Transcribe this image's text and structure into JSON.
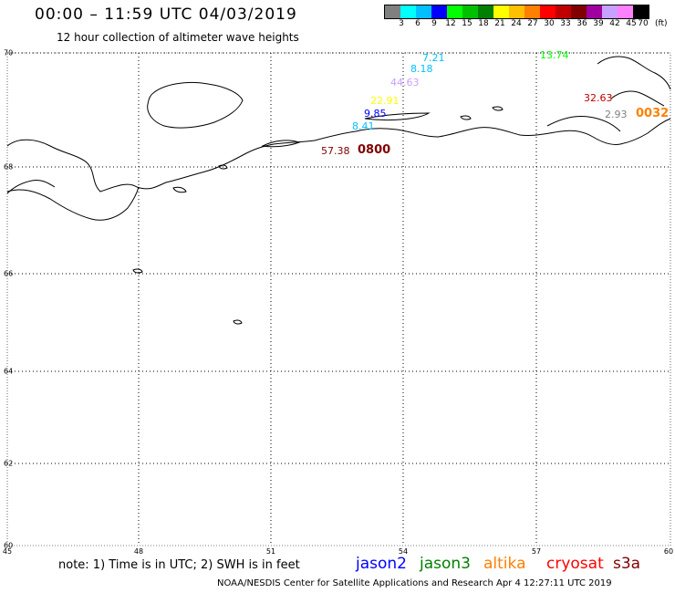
{
  "header": {
    "title": "00:00 – 11:59 UTC 04/03/2019",
    "subtitle": "12 hour collection of altimeter wave heights"
  },
  "colorbar": {
    "colors": [
      "#808080",
      "#00ffff",
      "#00c0ff",
      "#0000ff",
      "#00ff00",
      "#00c000",
      "#008000",
      "#ffff00",
      "#ffc000",
      "#ff8000",
      "#ff0000",
      "#c00000",
      "#800000",
      "#a000a0",
      "#c8a0ff",
      "#ff80ff",
      "#000000"
    ],
    "labels": [
      "3",
      "6",
      "9",
      "12",
      "15",
      "18",
      "21",
      "24",
      "27",
      "30",
      "33",
      "36",
      "39",
      "42",
      "45",
      "70"
    ],
    "unit": "(ft)"
  },
  "axes": {
    "lat_labels": [
      "70",
      "68",
      "66",
      "64",
      "62",
      "60"
    ],
    "lon_labels": [
      "45",
      "48",
      "51",
      "54",
      "57",
      "60"
    ]
  },
  "wave_labels": [
    {
      "text": "7.21",
      "color": "#00c0ff"
    },
    {
      "text": "8.18",
      "color": "#00c0ff"
    },
    {
      "text": "44.63",
      "color": "#c8a0ff"
    },
    {
      "text": "13.74",
      "color": "#00ff00"
    },
    {
      "text": "32.63",
      "color": "#c00000"
    },
    {
      "text": "22.91",
      "color": "#ffff00"
    },
    {
      "text": "9.85",
      "color": "#0000ff"
    },
    {
      "text": "2.93",
      "color": "#808080"
    },
    {
      "text": "0032",
      "color": "#ff8000"
    },
    {
      "text": "57.38",
      "color": "#800000"
    },
    {
      "text": "0800",
      "color": "#800000"
    },
    {
      "text": "8.41",
      "color": "#00c0ff"
    }
  ],
  "footer": {
    "note": "note:  1) Time is in UTC;  2) SWH is in feet",
    "legend": [
      {
        "name": "jason2",
        "color": "#0000ff"
      },
      {
        "name": "jason3",
        "color": "#008000"
      },
      {
        "name": "altika",
        "color": "#ff8000"
      },
      {
        "name": "cryosat",
        "color": "#ff0000"
      },
      {
        "name": "s3a",
        "color": "#800000"
      }
    ],
    "credit": "NOAA/NESDIS Center for Satellite Applications and Research    Apr  4 12:27:11 UTC 2019"
  }
}
